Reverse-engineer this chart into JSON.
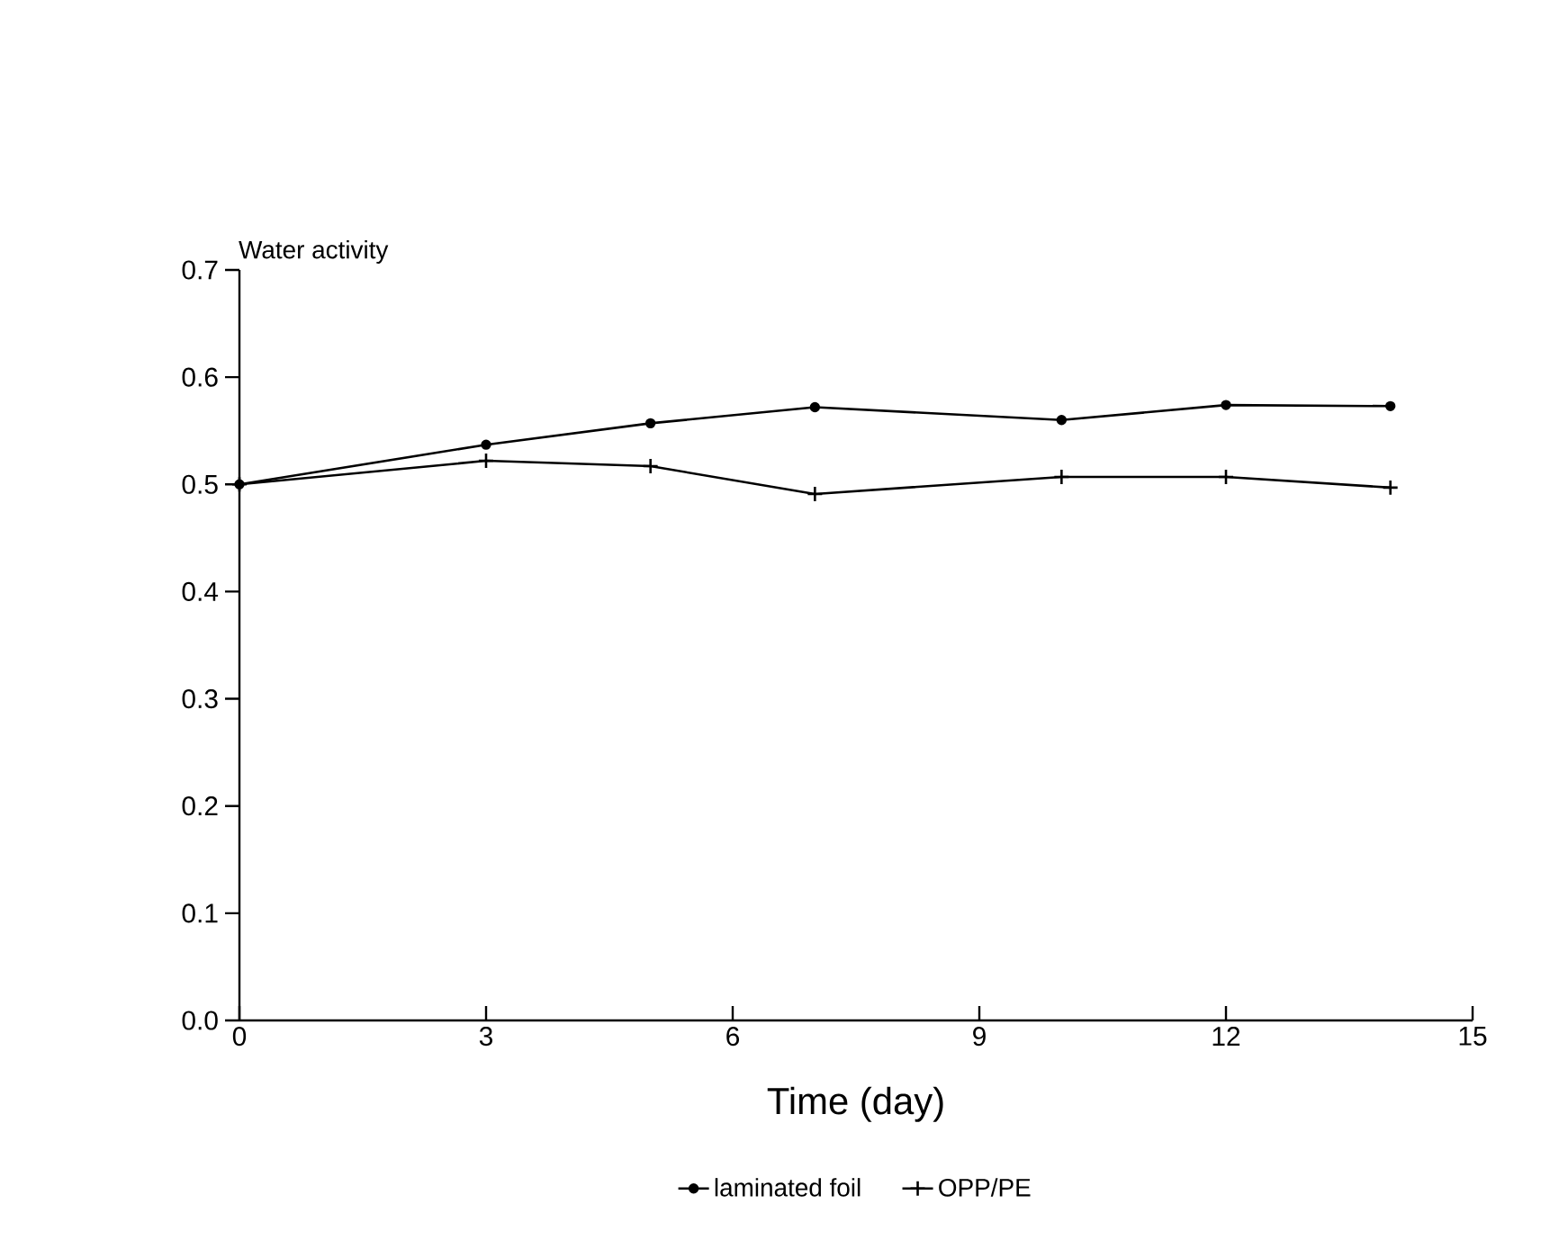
{
  "chart_data": {
    "type": "line",
    "xlabel": "Time (day)",
    "ylabel": "Water activity",
    "x": [
      0,
      3,
      5,
      7,
      10,
      12,
      14
    ],
    "series": [
      {
        "name": "laminated foil",
        "color": "#000000",
        "marker": "circle",
        "values": [
          0.5,
          0.537,
          0.557,
          0.572,
          0.56,
          0.574,
          0.573
        ]
      },
      {
        "name": "OPP/PE",
        "color": "#000000",
        "marker": "cross",
        "values": [
          0.5,
          0.522,
          0.517,
          0.491,
          0.507,
          0.507,
          0.497
        ]
      }
    ],
    "xlim": [
      0,
      15
    ],
    "ylim": [
      0,
      0.7
    ],
    "xticks": [
      0,
      3,
      6,
      9,
      12,
      15
    ],
    "yticks": [
      {
        "value": 0,
        "label": "0.0"
      },
      {
        "value": 0.1,
        "label": "0.1"
      },
      {
        "value": 0.2,
        "label": "0.2"
      },
      {
        "value": 0.3,
        "label": "0.3"
      },
      {
        "value": 0.4,
        "label": "0.4"
      },
      {
        "value": 0.5,
        "label": "0.5"
      },
      {
        "value": 0.6,
        "label": "0.6"
      },
      {
        "value": 0.7,
        "label": "0.7"
      }
    ],
    "legend": "bottom",
    "line_style": "solid",
    "grid": false
  }
}
